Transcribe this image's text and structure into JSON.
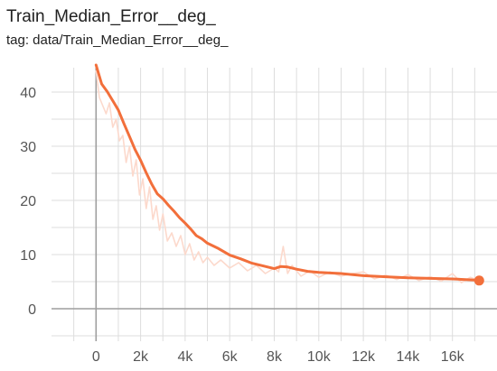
{
  "title": "Train_Median_Error__deg_",
  "tag": "tag: data/Train_Median_Error__deg_",
  "chart_data": {
    "type": "line",
    "title": "Train_Median_Error__deg_",
    "xlabel": "",
    "ylabel": "",
    "xlim": [
      -2000,
      18000
    ],
    "ylim": [
      -6,
      44.5
    ],
    "x_ticks": [
      0,
      2000,
      4000,
      6000,
      8000,
      10000,
      12000,
      14000,
      16000
    ],
    "x_tick_labels": [
      "0",
      "2k",
      "4k",
      "6k",
      "8k",
      "10k",
      "12k",
      "14k",
      "16k"
    ],
    "y_ticks": [
      0,
      10,
      20,
      30,
      40
    ],
    "y_tick_labels": [
      "0",
      "10",
      "20",
      "30",
      "40"
    ],
    "grid": true,
    "colors": {
      "smoothed": "#f26f3b",
      "raw": "#fcd9cc",
      "grid": "#dddddd",
      "axis": "#9e9e9e"
    },
    "series": [
      {
        "role": "smoothed",
        "x": [
          0,
          250,
          500,
          750,
          1000,
          1250,
          1500,
          1750,
          2000,
          2250,
          2500,
          2750,
          3000,
          3250,
          3500,
          3750,
          4000,
          4250,
          4500,
          4750,
          5000,
          5500,
          6000,
          6500,
          7000,
          7500,
          8000,
          8300,
          8600,
          9000,
          9500,
          10000,
          11000,
          12000,
          13000,
          14000,
          15000,
          16000,
          17000,
          17200
        ],
        "y": [
          45,
          41.5,
          40.1,
          38.4,
          36.7,
          34.2,
          31.8,
          29.4,
          27.4,
          25.1,
          23.0,
          21.2,
          20.3,
          19.1,
          18.0,
          16.8,
          15.8,
          14.7,
          13.5,
          12.9,
          12.1,
          11.1,
          9.9,
          9.2,
          8.4,
          7.9,
          7.4,
          7.8,
          7.7,
          7.3,
          6.9,
          6.7,
          6.5,
          6.1,
          5.9,
          5.7,
          5.6,
          5.5,
          5.3,
          5.2
        ]
      },
      {
        "role": "raw",
        "x": [
          0,
          150,
          300,
          450,
          600,
          750,
          900,
          1050,
          1200,
          1350,
          1500,
          1650,
          1800,
          1950,
          2100,
          2250,
          2400,
          2550,
          2700,
          2850,
          3000,
          3200,
          3400,
          3600,
          3800,
          4000,
          4200,
          4400,
          4600,
          4800,
          5000,
          5300,
          5600,
          6000,
          6400,
          6800,
          7200,
          7600,
          8000,
          8200,
          8400,
          8600,
          8800,
          9200,
          9600,
          10000,
          10500,
          11000,
          11500,
          12000,
          12500,
          13000,
          13500,
          14000,
          14500,
          15000,
          15500,
          16000,
          16400,
          16800,
          17200
        ],
        "y": [
          44,
          39,
          37.5,
          36,
          38,
          33.5,
          35,
          31,
          32,
          27,
          30,
          24.5,
          27.5,
          21,
          24,
          18.5,
          22.5,
          16.5,
          19,
          14.5,
          17.5,
          12.5,
          14,
          11.5,
          13.5,
          10,
          12,
          9,
          10.5,
          8.5,
          9.5,
          8,
          9,
          7.5,
          8.5,
          7,
          8,
          6.5,
          7.5,
          6.8,
          11.5,
          6.5,
          8,
          6,
          7,
          5.8,
          6.8,
          6,
          6.5,
          6.8,
          5.5,
          6.2,
          5.4,
          6.3,
          5.2,
          5.9,
          5.1,
          6.5,
          4.8,
          5.8,
          5.2
        ]
      }
    ],
    "end_marker": {
      "x": 17200,
      "y": 5.2
    }
  }
}
